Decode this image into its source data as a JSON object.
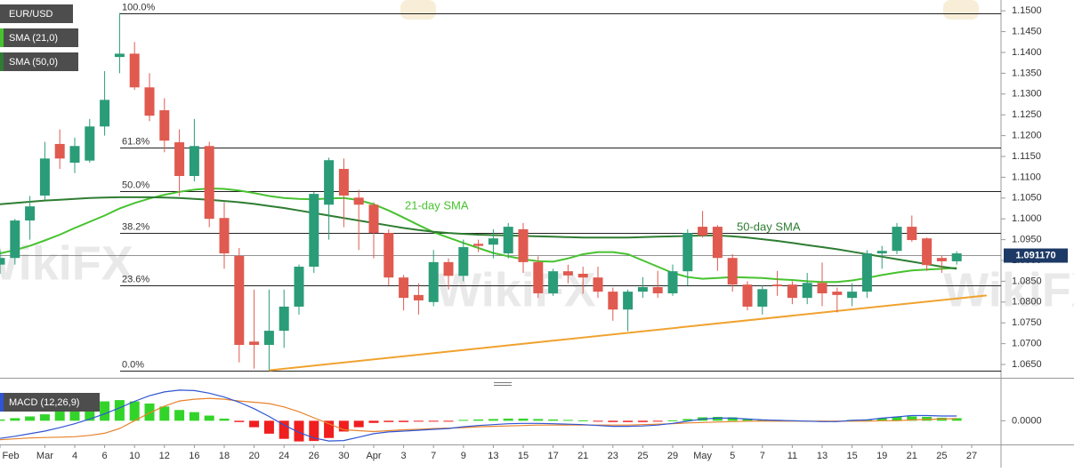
{
  "chart_data": [
    {
      "type": "candlestick",
      "title": "EUR/USD",
      "watermark": "WikiFX",
      "categories": [
        "Feb",
        null,
        null,
        "Mar",
        null,
        "4",
        null,
        "6",
        null,
        "10",
        null,
        "12",
        null,
        "16",
        null,
        "18",
        null,
        "20",
        null,
        "24",
        null,
        "26",
        null,
        "30",
        null,
        "Apr",
        null,
        "3",
        null,
        "7",
        null,
        "9",
        null,
        "13",
        null,
        "15",
        null,
        "17",
        null,
        "21",
        null,
        "23",
        null,
        "25",
        null,
        "29",
        null,
        "May",
        null,
        "5",
        null,
        "7",
        null,
        "11",
        null,
        "13",
        null,
        "15",
        null,
        "19",
        null,
        "21",
        null,
        "25",
        null,
        "27"
      ],
      "open": [
        1.089,
        1.0906,
        1.0996,
        1.1056,
        1.118,
        1.1135,
        1.114,
        1.1222,
        1.1389,
        1.1397,
        1.1316,
        1.1261,
        1.1184,
        1.1103,
        1.1175,
        1.1002,
        1.0911,
        1.0705,
        1.0697,
        1.0731,
        1.0789,
        1.0885,
        1.1034,
        1.112,
        1.1051,
        1.1034,
        1.0966,
        1.0859,
        1.0817,
        1.08,
        1.0896,
        1.0863,
        1.094,
        1.0938,
        1.0917,
        1.0975,
        1.0896,
        1.0821,
        1.0874,
        1.0868,
        1.0859,
        1.0825,
        1.0782,
        1.0825,
        1.0836,
        1.0821,
        1.0874,
        1.0981,
        1.0981,
        1.0906,
        1.0842,
        1.0789,
        1.0842,
        1.0842,
        1.081,
        1.0846,
        1.0825,
        1.081,
        1.0825,
        1.0917,
        1.0923,
        1.0981,
        1.0953,
        1.0906,
        1.0898,
        null
      ],
      "high": [
        1.0925,
        1.1,
        1.1055,
        1.1185,
        1.1215,
        1.1195,
        1.124,
        1.1355,
        1.1495,
        1.1425,
        1.135,
        1.129,
        1.1215,
        1.124,
        1.1185,
        1.104,
        1.093,
        1.083,
        1.083,
        1.083,
        1.089,
        1.1065,
        1.1147,
        1.1145,
        1.107,
        1.104,
        1.0975,
        1.0865,
        1.0845,
        1.0925,
        1.0905,
        1.095,
        1.095,
        1.0975,
        1.099,
        1.099,
        1.091,
        1.088,
        1.089,
        1.0885,
        1.0885,
        1.0835,
        1.083,
        1.086,
        1.0875,
        1.089,
        1.0975,
        1.1019,
        1.0985,
        1.0915,
        1.085,
        1.084,
        1.0875,
        1.085,
        1.087,
        1.0895,
        1.0835,
        1.0845,
        1.0925,
        1.0935,
        1.099,
        1.1008,
        1.0955,
        1.0912,
        1.0922,
        null
      ],
      "low": [
        1.0868,
        1.089,
        1.095,
        1.1045,
        1.112,
        1.111,
        1.1135,
        1.12,
        1.135,
        1.131,
        1.1235,
        1.116,
        1.1055,
        1.109,
        1.098,
        1.088,
        1.0655,
        1.064,
        1.0636,
        1.069,
        1.077,
        1.087,
        1.095,
        1.098,
        1.0925,
        1.0905,
        1.084,
        1.078,
        1.077,
        1.079,
        1.083,
        1.085,
        1.092,
        1.0905,
        1.0905,
        1.087,
        1.081,
        1.0815,
        1.0845,
        1.082,
        1.081,
        1.0755,
        1.073,
        1.081,
        1.081,
        1.0815,
        1.084,
        1.0955,
        1.0875,
        1.0825,
        1.078,
        1.077,
        1.0815,
        1.0795,
        1.0795,
        1.079,
        1.0775,
        1.079,
        1.081,
        1.088,
        1.0915,
        1.0945,
        1.0875,
        1.087,
        1.089,
        null
      ],
      "close": [
        1.0906,
        1.0996,
        1.103,
        1.1145,
        1.1145,
        1.1175,
        1.1222,
        1.1286,
        1.1397,
        1.1316,
        1.1248,
        1.1188,
        1.1103,
        1.1175,
        1.1,
        1.0917,
        1.0697,
        1.0697,
        1.0731,
        1.0789,
        1.0885,
        1.106,
        1.1141,
        1.1056,
        1.1034,
        1.0966,
        1.0859,
        1.081,
        1.0804,
        1.0896,
        1.0863,
        1.0932,
        1.0935,
        1.0953,
        1.0981,
        1.0896,
        1.0821,
        1.0874,
        1.0864,
        1.0859,
        1.0825,
        1.0782,
        1.0825,
        1.0836,
        1.0821,
        1.0874,
        1.0966,
        1.096,
        1.0906,
        1.0842,
        1.0789,
        1.0831,
        1.0838,
        1.081,
        1.0846,
        1.0821,
        1.0817,
        1.0825,
        1.0917,
        1.0923,
        1.0981,
        1.0949,
        1.0889,
        1.0898,
        1.0917,
        null
      ],
      "up_color": "#2b9c78",
      "down_color": "#e05a4f",
      "series": [
        {
          "name": "SMA (21,0)",
          "annotation": "21-day SMA",
          "color": "#47c22f",
          "values": [
            1.0917,
            1.0925,
            1.0935,
            1.0948,
            1.0962,
            1.0978,
            1.0993,
            1.1008,
            1.1025,
            1.1038,
            1.1049,
            1.1058,
            1.1065,
            1.107,
            1.1073,
            1.1072,
            1.1068,
            1.1062,
            1.1055,
            1.105,
            1.1048,
            1.1047,
            1.1049,
            1.105,
            1.1045,
            1.1035,
            1.102,
            1.1003,
            1.0985,
            1.0968,
            1.0955,
            1.0942,
            1.093,
            1.0918,
            1.091,
            1.0903,
            1.0898,
            1.0897,
            1.0905,
            1.0915,
            1.092,
            1.092,
            1.0915,
            1.09,
            1.0885,
            1.087,
            1.086,
            1.0856,
            1.0858,
            1.086,
            1.0859,
            1.0858,
            1.0855,
            1.0853,
            1.085,
            1.0848,
            1.0848,
            1.0852,
            1.0858,
            1.0865,
            1.0871,
            1.0876,
            1.0878,
            1.088,
            1.0882,
            null
          ]
        },
        {
          "name": "SMA (50,0)",
          "annotation": "50-day SMA",
          "color": "#2e7d32",
          "values": [
            1.1035,
            1.1038,
            1.1041,
            1.1044,
            1.1046,
            1.1048,
            1.105,
            1.1051,
            1.1052,
            1.1052,
            1.1052,
            1.1051,
            1.105,
            1.1048,
            1.1046,
            1.1043,
            1.104,
            1.1036,
            1.1031,
            1.1026,
            1.102,
            1.1014,
            1.1008,
            1.1002,
            1.0996,
            1.099,
            1.0984,
            1.0978,
            1.0973,
            1.0969,
            1.0966,
            1.0964,
            1.0962,
            1.0961,
            1.096,
            1.0959,
            1.0958,
            1.0957,
            1.0956,
            1.0955,
            1.0955,
            1.0955,
            1.0955,
            1.0956,
            1.0957,
            1.0958,
            1.0959,
            1.096,
            1.096,
            1.0958,
            1.0955,
            1.0951,
            1.0947,
            1.0942,
            1.0937,
            1.0932,
            1.0927,
            1.0921,
            1.0915,
            1.0909,
            1.0903,
            1.0897,
            1.0891,
            1.0885,
            1.088,
            null
          ]
        }
      ],
      "fib_levels": [
        {
          "value": 1.1495,
          "label": "100.0%"
        },
        {
          "value": 1.1171,
          "label": "61.8%"
        },
        {
          "value": 1.1066,
          "label": "50.0%"
        },
        {
          "value": 1.0966,
          "label": "38.2%"
        },
        {
          "value": 1.0841,
          "label": "23.6%"
        },
        {
          "value": 1.0636,
          "label": "0.0%"
        }
      ],
      "trendline": {
        "color": "#f0a22e",
        "x": [
          18,
          66
        ],
        "values": [
          1.0636,
          1.0816
        ]
      },
      "last_price": {
        "value": 1.09117,
        "label": "1.091170"
      },
      "ylim": [
        1.0618,
        1.1526
      ],
      "yticks": [
        {
          "value": 1.065,
          "label": "1.0650"
        },
        {
          "value": 1.07,
          "label": "1.0700"
        },
        {
          "value": 1.075,
          "label": "1.0750"
        },
        {
          "value": 1.08,
          "label": "1.0800"
        },
        {
          "value": 1.085,
          "label": "1.0850"
        },
        {
          "value": 1.09,
          "label": "1.0900"
        },
        {
          "value": 1.095,
          "label": "1.0950"
        },
        {
          "value": 1.1,
          "label": "1.1000"
        },
        {
          "value": 1.105,
          "label": "1.1050"
        },
        {
          "value": 1.11,
          "label": "1.1100"
        },
        {
          "value": 1.115,
          "label": "1.1150"
        },
        {
          "value": 1.12,
          "label": "1.1200"
        },
        {
          "value": 1.125,
          "label": "1.1250"
        },
        {
          "value": 1.13,
          "label": "1.1300"
        },
        {
          "value": 1.135,
          "label": "1.1350"
        },
        {
          "value": 1.14,
          "label": "1.1400"
        },
        {
          "value": 1.145,
          "label": "1.1450"
        },
        {
          "value": 1.15,
          "label": "1.1500"
        }
      ]
    },
    {
      "type": "macd",
      "title": "MACD (12,26,9)",
      "histogram": {
        "up_color": "#33d42a",
        "down_color": "#f01e1e",
        "values": [
          0.0003,
          0.0006,
          0.001,
          0.0015,
          0.0022,
          0.003,
          0.0038,
          0.0045,
          0.0048,
          0.0045,
          0.004,
          0.0033,
          0.0025,
          0.002,
          0.0012,
          0.0005,
          -0.0003,
          -0.0015,
          -0.003,
          -0.0042,
          -0.0048,
          -0.0047,
          -0.004,
          -0.0025,
          -0.0015,
          -0.0005,
          -0.0003,
          -0.0003,
          -0.0002,
          -0.0002,
          -0.0001,
          0.0002,
          0.0003,
          0.0004,
          0.0005,
          0.0005,
          0.0004,
          0.0003,
          0.0002,
          0.0001,
          -0.0001,
          -0.0003,
          -0.0003,
          -0.0003,
          -0.0002,
          0.0001,
          0.0004,
          0.0008,
          0.0009,
          0.0008,
          0.0005,
          0.0003,
          0.0002,
          0.0001,
          0,
          -0.0001,
          -0.0001,
          0.0002,
          0.0003,
          0.0006,
          0.0009,
          0.001,
          0.0009,
          0.0007,
          0.0006,
          null
        ]
      },
      "macd": {
        "color": "#2f55d4",
        "values": [
          -0.0041,
          -0.0036,
          -0.003,
          -0.0024,
          -0.0016,
          -0.0007,
          0.0004,
          0.0016,
          0.003,
          0.0045,
          0.0058,
          0.0067,
          0.0071,
          0.007,
          0.0064,
          0.0055,
          0.0043,
          0.0028,
          0.001,
          -0.001,
          -0.0027,
          -0.004,
          -0.0047,
          -0.0046,
          -0.0038,
          -0.003,
          -0.0026,
          -0.0024,
          -0.0022,
          -0.002,
          -0.0018,
          -0.0014,
          -0.0011,
          -0.0009,
          -0.0007,
          -0.0006,
          -0.0006,
          -0.0007,
          -0.0008,
          -0.0009,
          -0.0011,
          -0.0013,
          -0.0013,
          -0.0012,
          -0.001,
          -0.0006,
          -0.0001,
          0.0004,
          0.0006,
          0.0006,
          0.0004,
          0.0002,
          0.0001,
          0,
          -0.0001,
          -0.0002,
          -0.0002,
          0.0001,
          0.0002,
          0.0006,
          0.0009,
          0.0012,
          0.0012,
          0.0011,
          0.0011,
          null
        ]
      },
      "signal": {
        "color": "#e8822a",
        "values": [
          -0.0044,
          -0.0042,
          -0.004,
          -0.0039,
          -0.0038,
          -0.0037,
          -0.0034,
          -0.0029,
          -0.0018,
          0,
          0.0018,
          0.0034,
          0.0046,
          0.005,
          0.0052,
          0.005,
          0.0046,
          0.0043,
          0.004,
          0.0032,
          0.0021,
          0.0007,
          -0.0007,
          -0.0021,
          -0.0023,
          -0.0025,
          -0.0023,
          -0.0021,
          -0.002,
          -0.0018,
          -0.0017,
          -0.0016,
          -0.0014,
          -0.0013,
          -0.0012,
          -0.0011,
          -0.001,
          -0.001,
          -0.001,
          -0.001,
          -0.001,
          -0.001,
          -0.001,
          -0.0009,
          -0.0008,
          -0.0007,
          -0.0005,
          -0.0004,
          -0.0003,
          -0.0002,
          -0.0001,
          -0.0001,
          -0.0001,
          -0.0001,
          -0.0001,
          -0.0001,
          -0.0001,
          -0.0001,
          -0.0001,
          0,
          0,
          0.0002,
          0.0003,
          0.0004,
          0.0005,
          null
        ]
      },
      "ylim": [
        -0.0055,
        0.0075
      ],
      "yticks": [
        {
          "value": 0,
          "label": "0.0000"
        }
      ]
    }
  ]
}
